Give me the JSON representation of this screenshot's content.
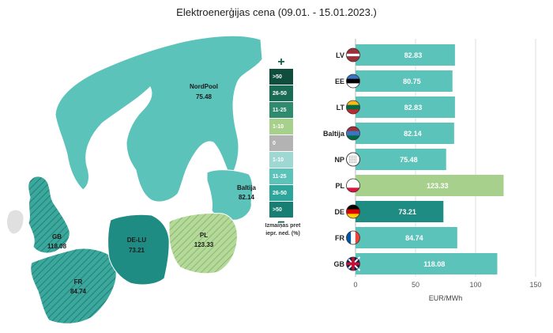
{
  "title": "Elektroenerģijas cena (09.01. - 15.01.2023.)",
  "legend": {
    "plus_sign": "+",
    "minus_sign": "−",
    "items": [
      {
        "label": ">50",
        "color": "#0f4d3c"
      },
      {
        "label": "26-50",
        "color": "#1a6b53"
      },
      {
        "label": "11-25",
        "color": "#2e8b6e"
      },
      {
        "label": "1-10",
        "color": "#a8d08d"
      },
      {
        "label": "0",
        "color": "#b3b3b3"
      },
      {
        "label": "1-10",
        "color": "#9fd8d2"
      },
      {
        "label": "11-25",
        "color": "#5cc3bb"
      },
      {
        "label": "26-50",
        "color": "#2ea59b"
      },
      {
        "label": ">50",
        "color": "#177e74"
      }
    ],
    "note_line1": "Izmaiņas pret",
    "note_line2": "iepr. ned. (%)"
  },
  "map_labels": {
    "nordpool": {
      "name": "NordPool",
      "value": "75.48"
    },
    "baltija": {
      "name": "Baltija",
      "value": "82.14"
    },
    "gb": {
      "name": "GB",
      "value": "118.08"
    },
    "de_lu": {
      "name": "DE-LU",
      "value": "73.21"
    },
    "pl": {
      "name": "PL",
      "value": "123.33"
    },
    "fr": {
      "name": "FR",
      "value": "84.74"
    }
  },
  "chart_data": {
    "type": "bar",
    "orientation": "horizontal",
    "categories": [
      "LV",
      "EE",
      "LT",
      "Baltija",
      "NP",
      "PL",
      "DE",
      "FR",
      "GB"
    ],
    "values": [
      82.83,
      80.75,
      82.83,
      82.14,
      75.48,
      123.33,
      73.21,
      84.74,
      118.08
    ],
    "value_labels": [
      "82.83",
      "80.75",
      "82.83",
      "82.14",
      "75.48",
      "123.33",
      "73.21",
      "84.74",
      "118.08"
    ],
    "bar_colors": [
      "#5cc3bb",
      "#5cc3bb",
      "#5cc3bb",
      "#5cc3bb",
      "#5cc3bb",
      "#a8d08d",
      "#1f8c83",
      "#5cc3bb",
      "#5cc3bb"
    ],
    "flag_icons": [
      "latvia-flag-icon",
      "estonia-flag-icon",
      "lithuania-flag-icon",
      "baltics-flag-icon",
      "nordpool-icon",
      "poland-flag-icon",
      "germany-flag-icon",
      "france-flag-icon",
      "uk-flag-icon"
    ],
    "xlim": [
      0,
      150
    ],
    "xticks": [
      0,
      50,
      100,
      150
    ],
    "tick_labels": [
      "0",
      "50",
      "100",
      "150"
    ],
    "xlabel": "EUR/MWh",
    "grid": true
  }
}
